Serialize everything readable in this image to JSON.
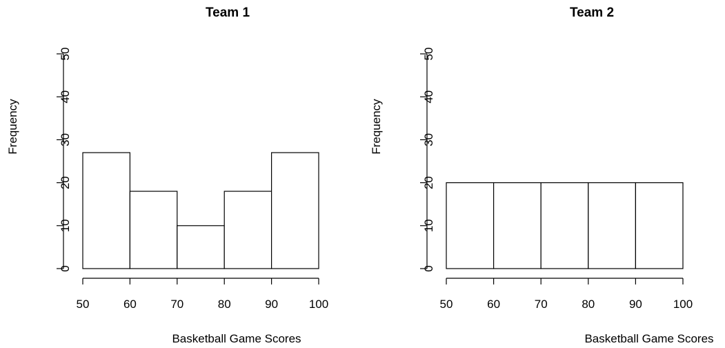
{
  "chart_data": [
    {
      "type": "bar",
      "title": "Team 1",
      "xlabel": "Basketball Game Scores",
      "ylabel": "Frequency",
      "bin_edges": [
        50,
        60,
        70,
        80,
        90,
        100
      ],
      "values": [
        27,
        18,
        10,
        18,
        27
      ],
      "xlim": [
        50,
        100
      ],
      "ylim": [
        0,
        50
      ],
      "xticks": [
        "50",
        "60",
        "70",
        "80",
        "90",
        "100"
      ],
      "yticks": [
        "0",
        "10",
        "20",
        "30",
        "40",
        "50"
      ],
      "grid": false,
      "bar_fill": "#ffffff",
      "bar_stroke": "#000000"
    },
    {
      "type": "bar",
      "title": "Team 2",
      "xlabel": "Basketball Game Scores",
      "ylabel": "Frequency",
      "bin_edges": [
        50,
        60,
        70,
        80,
        90,
        100
      ],
      "values": [
        20,
        20,
        20,
        20,
        20
      ],
      "xlim": [
        50,
        100
      ],
      "ylim": [
        0,
        50
      ],
      "xticks": [
        "50",
        "60",
        "70",
        "80",
        "90",
        "100"
      ],
      "yticks": [
        "0",
        "10",
        "20",
        "30",
        "40",
        "50"
      ],
      "grid": false,
      "bar_fill": "#ffffff",
      "bar_stroke": "#000000"
    }
  ]
}
